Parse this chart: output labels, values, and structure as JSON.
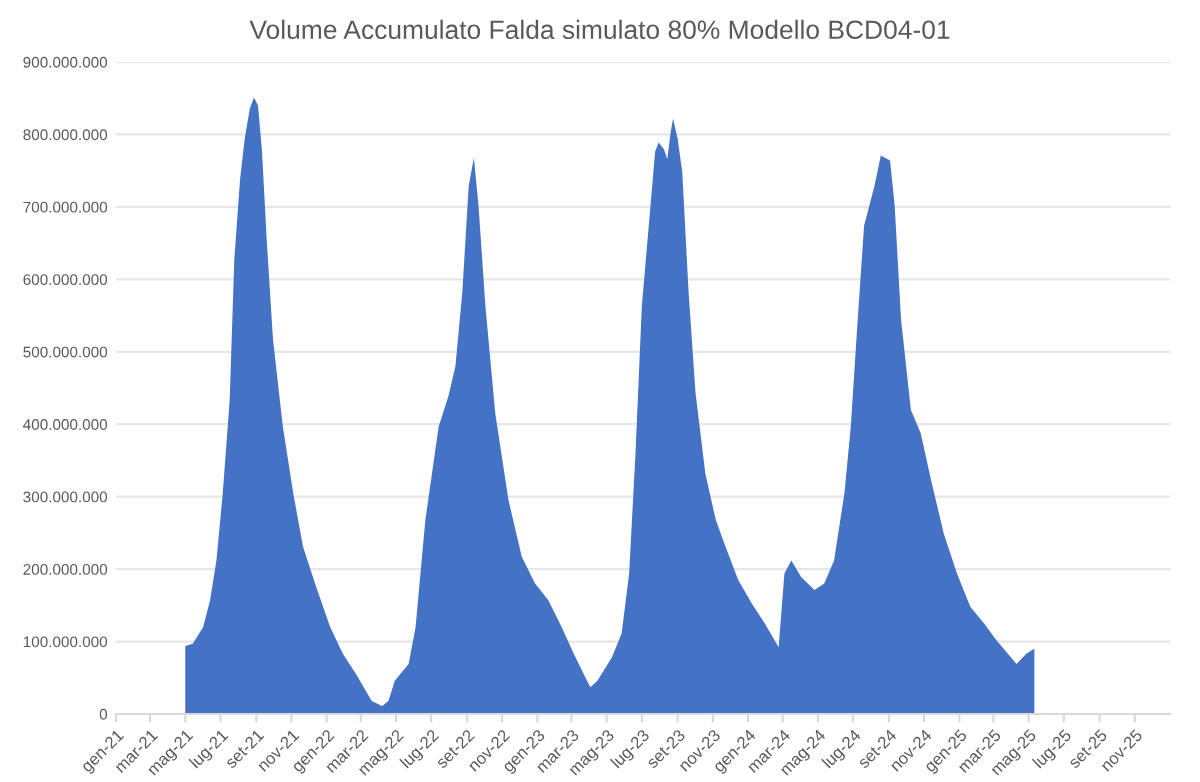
{
  "chart_data": {
    "type": "area",
    "title": "Volume Accumulato Falda simulato 80% Modello BCD04-01",
    "x": [
      "2021-05-01",
      "2021-05-14",
      "2021-06-01",
      "2021-06-13",
      "2021-06-24",
      "2021-07-05",
      "2021-07-17",
      "2021-07-25",
      "2021-08-04",
      "2021-08-12",
      "2021-08-21",
      "2021-08-28",
      "2021-09-04",
      "2021-09-11",
      "2021-09-19",
      "2021-09-30",
      "2021-10-17",
      "2021-11-04",
      "2021-11-21",
      "2021-12-14",
      "2022-01-07",
      "2022-01-29",
      "2022-02-21",
      "2022-03-20",
      "2022-04-07",
      "2022-04-18",
      "2022-04-29",
      "2022-05-23",
      "2022-06-04",
      "2022-06-21",
      "2022-07-14",
      "2022-07-31",
      "2022-08-12",
      "2022-08-24",
      "2022-09-04",
      "2022-09-13",
      "2022-09-21",
      "2022-10-03",
      "2022-10-20",
      "2022-11-12",
      "2022-12-05",
      "2022-12-28",
      "2023-01-20",
      "2023-02-12",
      "2023-03-05",
      "2023-03-28",
      "2023-04-03",
      "2023-04-15",
      "2023-05-10",
      "2023-05-27",
      "2023-06-09",
      "2023-06-20",
      "2023-07-01",
      "2023-07-13",
      "2023-07-24",
      "2023-07-30",
      "2023-08-08",
      "2023-08-14",
      "2023-08-20",
      "2023-08-24",
      "2023-09-01",
      "2023-09-09",
      "2023-09-20",
      "2023-10-02",
      "2023-10-19",
      "2023-11-06",
      "2023-11-23",
      "2023-12-15",
      "2024-01-08",
      "2024-01-30",
      "2024-02-23",
      "2024-03-04",
      "2024-03-16",
      "2024-04-02",
      "2024-04-25",
      "2024-05-12",
      "2024-05-29",
      "2024-06-16",
      "2024-06-27",
      "2024-07-09",
      "2024-07-20",
      "2024-08-07",
      "2024-08-18",
      "2024-09-03",
      "2024-09-11",
      "2024-09-22",
      "2024-10-09",
      "2024-10-26",
      "2024-11-13",
      "2024-12-05",
      "2024-12-28",
      "2025-01-20",
      "2025-02-13",
      "2025-03-06",
      "2025-04-10",
      "2025-04-27",
      "2025-05-11"
    ],
    "series": [
      {
        "color": "#4472c4",
        "values": [
          94000000,
          97000000,
          120000000,
          157000000,
          212000000,
          305000000,
          434000000,
          628000000,
          739000000,
          794000000,
          836000000,
          851000000,
          840000000,
          776000000,
          656000000,
          517000000,
          397000000,
          305000000,
          231000000,
          175000000,
          120000000,
          83000000,
          55000000,
          18000000,
          11000000,
          18000000,
          46000000,
          69000000,
          120000000,
          268000000,
          397000000,
          439000000,
          480000000,
          582000000,
          729000000,
          768000000,
          702000000,
          563000000,
          415000000,
          295000000,
          217000000,
          180000000,
          157000000,
          120000000,
          83000000,
          46000000,
          37000000,
          46000000,
          78000000,
          111000000,
          194000000,
          360000000,
          563000000,
          674000000,
          776000000,
          789000000,
          780000000,
          766000000,
          803000000,
          822000000,
          794000000,
          748000000,
          582000000,
          443000000,
          332000000,
          268000000,
          231000000,
          185000000,
          152000000,
          125000000,
          92000000,
          194000000,
          212000000,
          189000000,
          171000000,
          180000000,
          212000000,
          305000000,
          397000000,
          545000000,
          674000000,
          729000000,
          771000000,
          764000000,
          702000000,
          545000000,
          420000000,
          388000000,
          323000000,
          249000000,
          194000000,
          148000000,
          125000000,
          102000000,
          69000000,
          83000000,
          90000000
        ]
      }
    ],
    "xlim": [
      "2021-01-01",
      "2026-01-01"
    ],
    "xticks": [
      {
        "value": "2021-01-01",
        "label": "gen-21"
      },
      {
        "value": "2021-03-01",
        "label": "mar-21"
      },
      {
        "value": "2021-05-01",
        "label": "mag-21"
      },
      {
        "value": "2021-07-01",
        "label": "lug-21"
      },
      {
        "value": "2021-09-01",
        "label": "set-21"
      },
      {
        "value": "2021-11-01",
        "label": "nov-21"
      },
      {
        "value": "2022-01-01",
        "label": "gen-22"
      },
      {
        "value": "2022-03-01",
        "label": "mar-22"
      },
      {
        "value": "2022-05-01",
        "label": "mag-22"
      },
      {
        "value": "2022-07-01",
        "label": "lug-22"
      },
      {
        "value": "2022-09-01",
        "label": "set-22"
      },
      {
        "value": "2022-11-01",
        "label": "nov-22"
      },
      {
        "value": "2023-01-01",
        "label": "gen-23"
      },
      {
        "value": "2023-03-01",
        "label": "mar-23"
      },
      {
        "value": "2023-05-01",
        "label": "mag-23"
      },
      {
        "value": "2023-07-01",
        "label": "lug-23"
      },
      {
        "value": "2023-09-01",
        "label": "set-23"
      },
      {
        "value": "2023-11-01",
        "label": "nov-23"
      },
      {
        "value": "2024-01-01",
        "label": "gen-24"
      },
      {
        "value": "2024-03-01",
        "label": "mar-24"
      },
      {
        "value": "2024-05-01",
        "label": "mag-24"
      },
      {
        "value": "2024-07-01",
        "label": "lug-24"
      },
      {
        "value": "2024-09-01",
        "label": "set-24"
      },
      {
        "value": "2024-11-01",
        "label": "nov-24"
      },
      {
        "value": "2025-01-01",
        "label": "gen-25"
      },
      {
        "value": "2025-03-01",
        "label": "mar-25"
      },
      {
        "value": "2025-05-01",
        "label": "mag-25"
      },
      {
        "value": "2025-07-01",
        "label": "lug-25"
      },
      {
        "value": "2025-09-01",
        "label": "set-25"
      },
      {
        "value": "2025-11-01",
        "label": "nov-25"
      }
    ],
    "ylim": [
      0,
      900000000
    ],
    "yticks": [
      {
        "value": 0,
        "label": "0"
      },
      {
        "value": 100000000,
        "label": "100.000.000"
      },
      {
        "value": 200000000,
        "label": "200.000.000"
      },
      {
        "value": 300000000,
        "label": "300.000.000"
      },
      {
        "value": 400000000,
        "label": "400.000.000"
      },
      {
        "value": 500000000,
        "label": "500.000.000"
      },
      {
        "value": 600000000,
        "label": "600.000.000"
      },
      {
        "value": 700000000,
        "label": "700.000.000"
      },
      {
        "value": 800000000,
        "label": "800.000.000"
      },
      {
        "value": 900000000,
        "label": "900.000.000"
      }
    ],
    "grid": "y"
  }
}
